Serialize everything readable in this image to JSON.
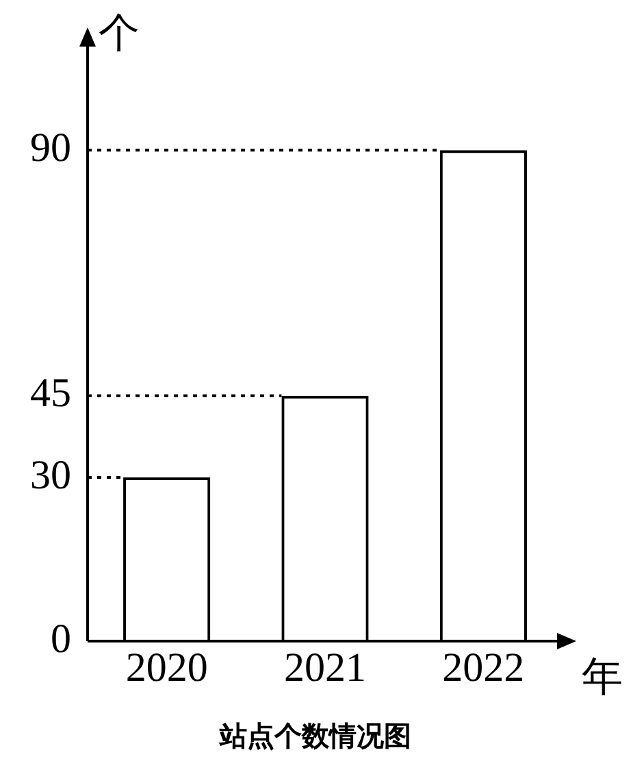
{
  "chart_data": {
    "type": "bar",
    "title": "站点个数情况图",
    "ylabel": "个",
    "xlabel": "年",
    "categories": [
      "2020",
      "2021",
      "2022"
    ],
    "values": [
      30,
      45,
      90
    ],
    "color": "#000000",
    "ylim": [
      0,
      110
    ],
    "yticks": [
      0,
      30,
      45,
      90
    ],
    "grid": false,
    "ref_lines": [
      {
        "axis": "y",
        "value": 30,
        "line_style": "dotted"
      },
      {
        "axis": "y",
        "value": 45,
        "line_style": "dotted"
      },
      {
        "axis": "y",
        "value": 90,
        "line_style": "dotted"
      }
    ]
  }
}
